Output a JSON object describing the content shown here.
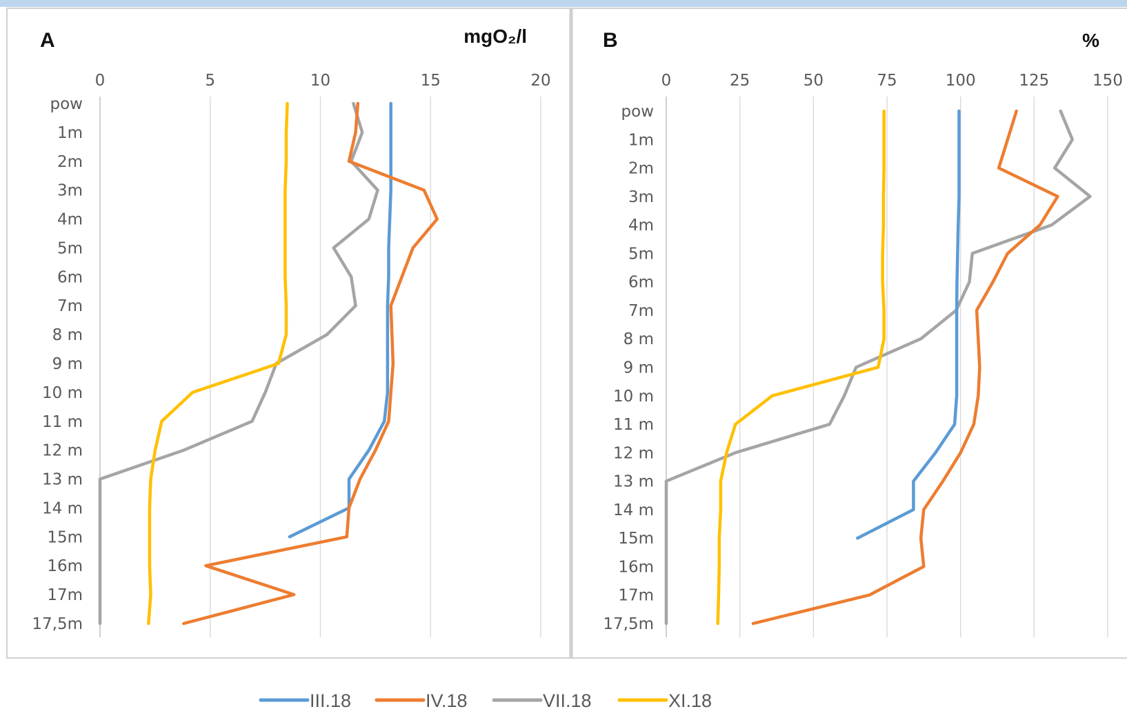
{
  "chart_data": [
    {
      "type": "line",
      "orientation": "depth-profile",
      "panel_label": "A",
      "unit": "mgO₂/l",
      "xlim": [
        0,
        20
      ],
      "x_ticks": [
        0,
        5,
        10,
        15,
        20
      ],
      "depth_labels": [
        "pow",
        "1m",
        "2m",
        "3m",
        "4m",
        "5m",
        "6m",
        "7m",
        "8 m",
        "9 m",
        "10 m",
        "11 m",
        "12 m",
        "13 m",
        "14 m",
        "15m",
        "16m",
        "17m",
        "17,5m"
      ],
      "grid": true,
      "series": [
        {
          "name": "III.18",
          "color": "#5b9bd5",
          "values": [
            13.2,
            13.2,
            13.2,
            13.2,
            13.15,
            13.1,
            13.1,
            13.05,
            13.05,
            13.05,
            13.05,
            12.9,
            12.2,
            11.3,
            11.3,
            8.6,
            null,
            null,
            null
          ]
        },
        {
          "name": "IV.18",
          "color": "#ed7d31",
          "values": [
            11.7,
            11.6,
            11.3,
            14.7,
            15.3,
            14.2,
            13.7,
            13.2,
            13.25,
            13.3,
            13.2,
            13.1,
            12.5,
            11.8,
            11.3,
            11.2,
            4.8,
            8.8,
            3.8
          ]
        },
        {
          "name": "VII.18",
          "color": "#a5a5a5",
          "values": [
            11.5,
            11.9,
            11.4,
            12.6,
            12.2,
            10.6,
            11.4,
            11.6,
            10.3,
            8.0,
            7.5,
            6.9,
            3.8,
            0,
            0,
            0,
            0,
            0,
            0
          ]
        },
        {
          "name": "XI.18",
          "color": "#ffc000",
          "values": [
            8.5,
            8.45,
            8.45,
            8.4,
            8.4,
            8.4,
            8.4,
            8.45,
            8.45,
            8.1,
            4.2,
            2.8,
            2.5,
            2.3,
            2.25,
            2.25,
            2.25,
            2.3,
            2.2
          ]
        }
      ]
    },
    {
      "type": "line",
      "orientation": "depth-profile",
      "panel_label": "B",
      "unit": "%",
      "xlim": [
        0,
        150
      ],
      "x_ticks": [
        0,
        25,
        50,
        75,
        100,
        125,
        150
      ],
      "depth_labels": [
        "pow",
        "1m",
        "2m",
        "3m",
        "4m",
        "5m",
        "6m",
        "7m",
        "8 m",
        "9 m",
        "10 m",
        "11 m",
        "12 m",
        "13 m",
        "14 m",
        "15m",
        "16m",
        "17m",
        "17,5m"
      ],
      "grid": true,
      "series": [
        {
          "name": "III.18",
          "color": "#5b9bd5",
          "values": [
            99.5,
            99.5,
            99.5,
            99.5,
            99.2,
            99.0,
            98.8,
            98.7,
            98.7,
            98.7,
            98.7,
            98.0,
            91.5,
            84.0,
            84.0,
            65.0,
            null,
            null,
            null
          ]
        },
        {
          "name": "IV.18",
          "color": "#ed7d31",
          "values": [
            119,
            116,
            113,
            133,
            127,
            116,
            111,
            105.5,
            106,
            106.5,
            106,
            104.5,
            100,
            94,
            87.5,
            86.5,
            87.5,
            69,
            29.5
          ]
        },
        {
          "name": "VII.18",
          "color": "#a5a5a5",
          "values": [
            134,
            138,
            132,
            144,
            131,
            104,
            103,
            98.5,
            86.5,
            64.5,
            60.5,
            55.5,
            23.5,
            0,
            0,
            0,
            0,
            0,
            0
          ]
        },
        {
          "name": "XI.18",
          "color": "#ffc000",
          "values": [
            74,
            74,
            74,
            73.8,
            73.8,
            73.5,
            73.5,
            74,
            74,
            72,
            36,
            23.5,
            20.5,
            18.5,
            18.5,
            18,
            18,
            17.8,
            17.5
          ]
        }
      ]
    }
  ],
  "legend": {
    "placement": "bottom",
    "items": [
      {
        "label": "III.18",
        "color": "#5b9bd5"
      },
      {
        "label": "IV.18",
        "color": "#ed7d31"
      },
      {
        "label": "VII.18",
        "color": "#a5a5a5"
      },
      {
        "label": "XI.18",
        "color": "#ffc000"
      }
    ]
  }
}
